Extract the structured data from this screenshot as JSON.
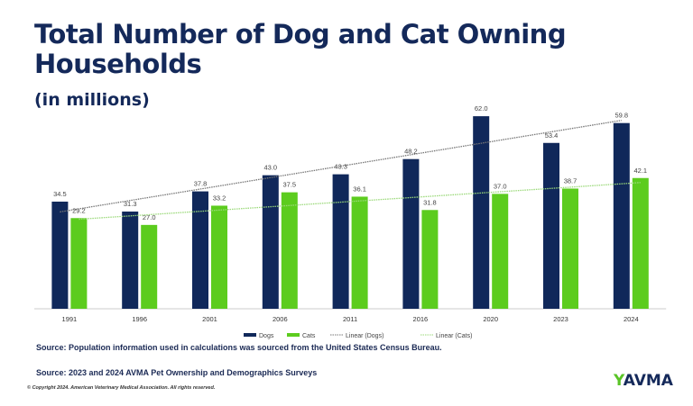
{
  "chart_data": {
    "type": "bar",
    "title": "Total Number of Dog and Cat Owning Households",
    "subtitle": "(in millions)",
    "categories": [
      "1991",
      "1996",
      "2001",
      "2006",
      "2011",
      "2016",
      "2020",
      "2023",
      "2024"
    ],
    "series": [
      {
        "name": "Dogs",
        "color": "#10285a",
        "values": [
          34.5,
          31.3,
          37.8,
          43.0,
          43.3,
          48.2,
          62.0,
          53.4,
          59.8
        ]
      },
      {
        "name": "Cats",
        "color": "#5ccc1e",
        "values": [
          29.2,
          27.0,
          33.2,
          37.5,
          36.1,
          31.8,
          37.0,
          38.7,
          42.1
        ]
      }
    ],
    "trendlines": [
      {
        "name": "Linear (Dogs)",
        "series": "Dogs",
        "color": "#777777"
      },
      {
        "name": "Linear (Cats)",
        "series": "Cats",
        "color": "#9bd97a"
      }
    ],
    "ylim": [
      0,
      70
    ],
    "grid": false,
    "legend": "bottom"
  },
  "sources": [
    "Source: Population information used in calculations was sourced from the United States Census Bureau.",
    "Source: 2023 and 2024 AVMA Pet Ownership and Demographics Surveys"
  ],
  "copyright": "© Copyright 2024. American Veterinary Medical Association. All rights reserved.",
  "logo": "AVMA"
}
